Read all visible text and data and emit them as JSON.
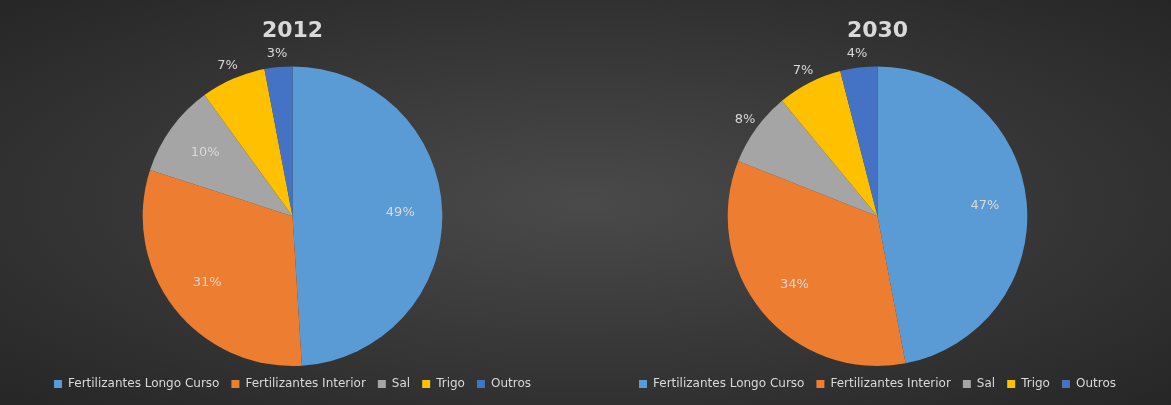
{
  "chart_data": [
    {
      "type": "pie",
      "title": "2012",
      "categories": [
        "Fertilizantes Longo Curso",
        "Fertilizantes Interior",
        "Sal",
        "Trigo",
        "Outros"
      ],
      "values": [
        49,
        31,
        10,
        7,
        3
      ],
      "value_labels": [
        "49%",
        "31%",
        "10%",
        "7%",
        "3%"
      ],
      "colors": [
        "#5b9bd5",
        "#ed7d31",
        "#a5a5a5",
        "#ffc000",
        "#4472c4"
      ],
      "legend": "bottom"
    },
    {
      "type": "pie",
      "title": "2030",
      "categories": [
        "Fertilizantes Longo Curso",
        "Fertilizantes Interior",
        "Sal",
        "Trigo",
        "Outros"
      ],
      "values": [
        47,
        34,
        8,
        7,
        4
      ],
      "value_labels": [
        "47%",
        "34%",
        "8%",
        "7%",
        "4%"
      ],
      "colors": [
        "#5b9bd5",
        "#ed7d31",
        "#a5a5a5",
        "#ffc000",
        "#4472c4"
      ],
      "legend": "bottom"
    }
  ]
}
